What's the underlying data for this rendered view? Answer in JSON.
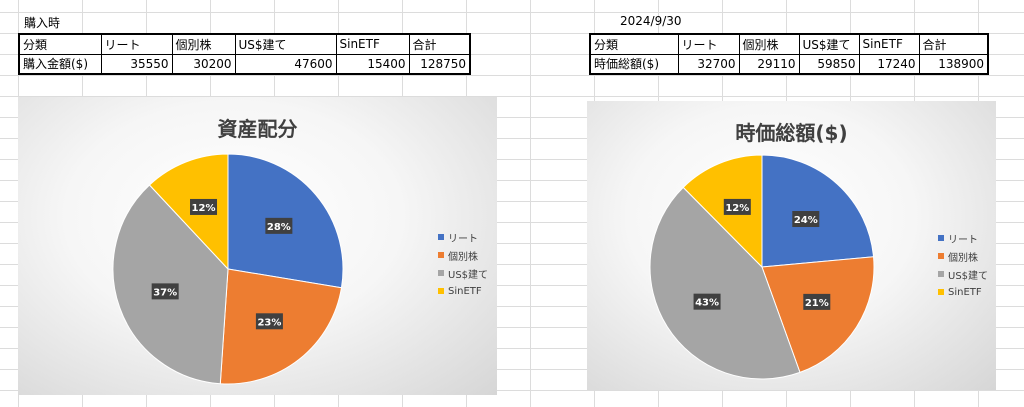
{
  "left": {
    "sheet_label": "購入時",
    "headers": [
      "分類",
      "リート",
      "個別株",
      "US$建て",
      "SinETF",
      "合計"
    ],
    "row_label": "購入金額($)",
    "row_values": [
      "35550",
      "30200",
      "47600",
      "15400",
      "128750"
    ]
  },
  "right": {
    "sheet_label": "2024/9/30",
    "headers": [
      "分類",
      "リート",
      "個別株",
      "US$建て",
      "SinETF",
      "合計"
    ],
    "row_label": "時価総額($)",
    "row_values": [
      "32700",
      "29110",
      "59850",
      "17240",
      "138900"
    ]
  },
  "chart_data": [
    {
      "type": "pie",
      "title": "資産配分",
      "categories": [
        "リート",
        "個別株",
        "US$建て",
        "SinETF"
      ],
      "values": [
        35550,
        30200,
        47600,
        15400
      ],
      "data_labels": [
        "28%",
        "23%",
        "37%",
        "12%"
      ],
      "colors": [
        "#4472C4",
        "#ED7D31",
        "#A5A5A5",
        "#FFC000"
      ],
      "legend": "right"
    },
    {
      "type": "pie",
      "title": "時価総額($)",
      "categories": [
        "リート",
        "個別株",
        "US$建て",
        "SinETF"
      ],
      "values": [
        32700,
        29110,
        59850,
        17240
      ],
      "data_labels": [
        "24%",
        "21%",
        "43%",
        "12%"
      ],
      "colors": [
        "#4472C4",
        "#ED7D31",
        "#A5A5A5",
        "#FFC000"
      ],
      "legend": "right"
    }
  ]
}
